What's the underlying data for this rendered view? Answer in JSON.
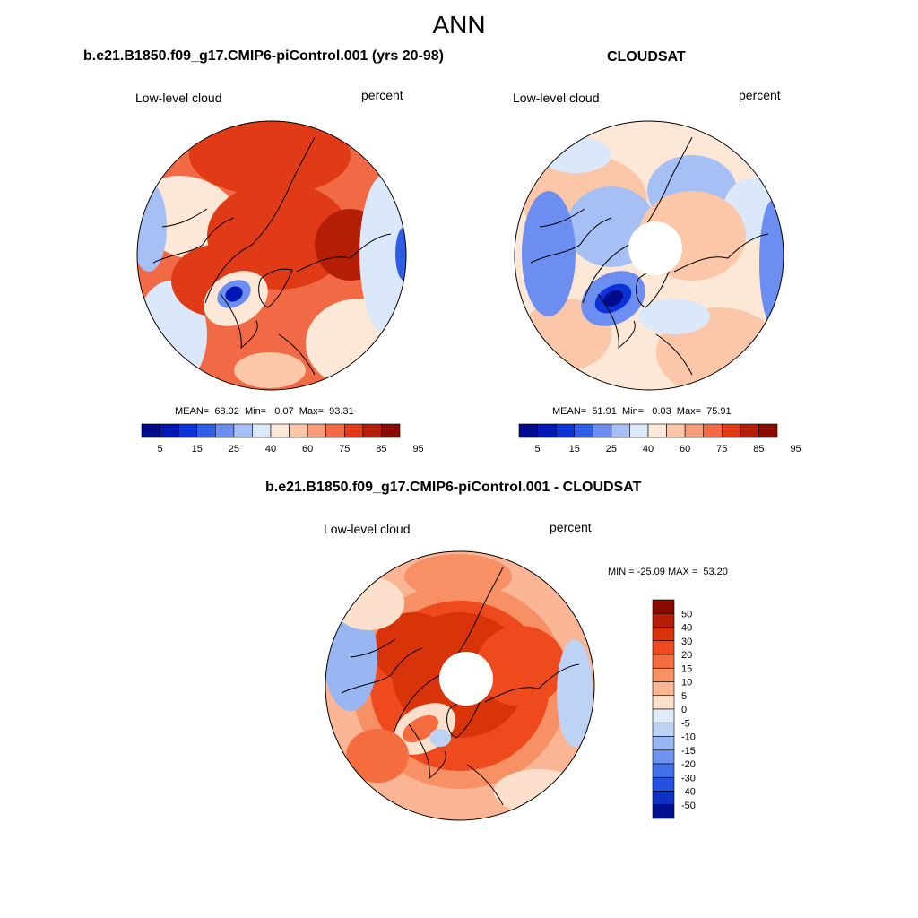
{
  "title": "ANN",
  "panels": [
    {
      "title": "b.e21.B1850.f09_g17.CMIP6-piControl.001 (yrs 20-98)",
      "left_label": "Low-level cloud",
      "right_label": "percent",
      "stats": "MEAN=  68.02  Min=   0.07  Max=  93.31",
      "colorbar_labels": [
        "5",
        "15",
        "25",
        "40",
        "60",
        "75",
        "85",
        "95"
      ],
      "polar_hole": false
    },
    {
      "title": "CLOUDSAT",
      "left_label": "Low-level cloud",
      "right_label": "percent",
      "stats": "MEAN=  51.91  Min=   0.03  Max=  75.91",
      "colorbar_labels": [
        "5",
        "15",
        "25",
        "40",
        "60",
        "75",
        "85",
        "95"
      ],
      "polar_hole": true
    },
    {
      "title": "b.e21.B1850.f09_g17.CMIP6-piControl.001 - CLOUDSAT",
      "left_label": "Low-level cloud",
      "right_label": "percent",
      "stats": "MIN = -25.09 MAX =  53.20",
      "colorbar_labels": [
        "50",
        "40",
        "30",
        "20",
        "15",
        "10",
        "5",
        "0",
        "-5",
        "-10",
        "-15",
        "-20",
        "-30",
        "-40",
        "-50"
      ],
      "polar_hole": true
    }
  ],
  "colors": {
    "abs_scale": [
      "#000a8c",
      "#0017b3",
      "#0a32d6",
      "#2e5ee6",
      "#6b8ef0",
      "#a6c0f5",
      "#dbe8fa",
      "#fde8d8",
      "#fbc7a8",
      "#f89c78",
      "#f26a45",
      "#e03a16",
      "#b51e06",
      "#8a0a00"
    ],
    "diff_scale": [
      "#8a0a00",
      "#b51e06",
      "#d83309",
      "#ef4a1e",
      "#f56d3f",
      "#f89066",
      "#fab595",
      "#fde0cb",
      "#e0ecfa",
      "#bdd3f6",
      "#97b6f2",
      "#6d93ee",
      "#4370ea",
      "#2550e0",
      "#0e30c4",
      "#00108f"
    ]
  }
}
